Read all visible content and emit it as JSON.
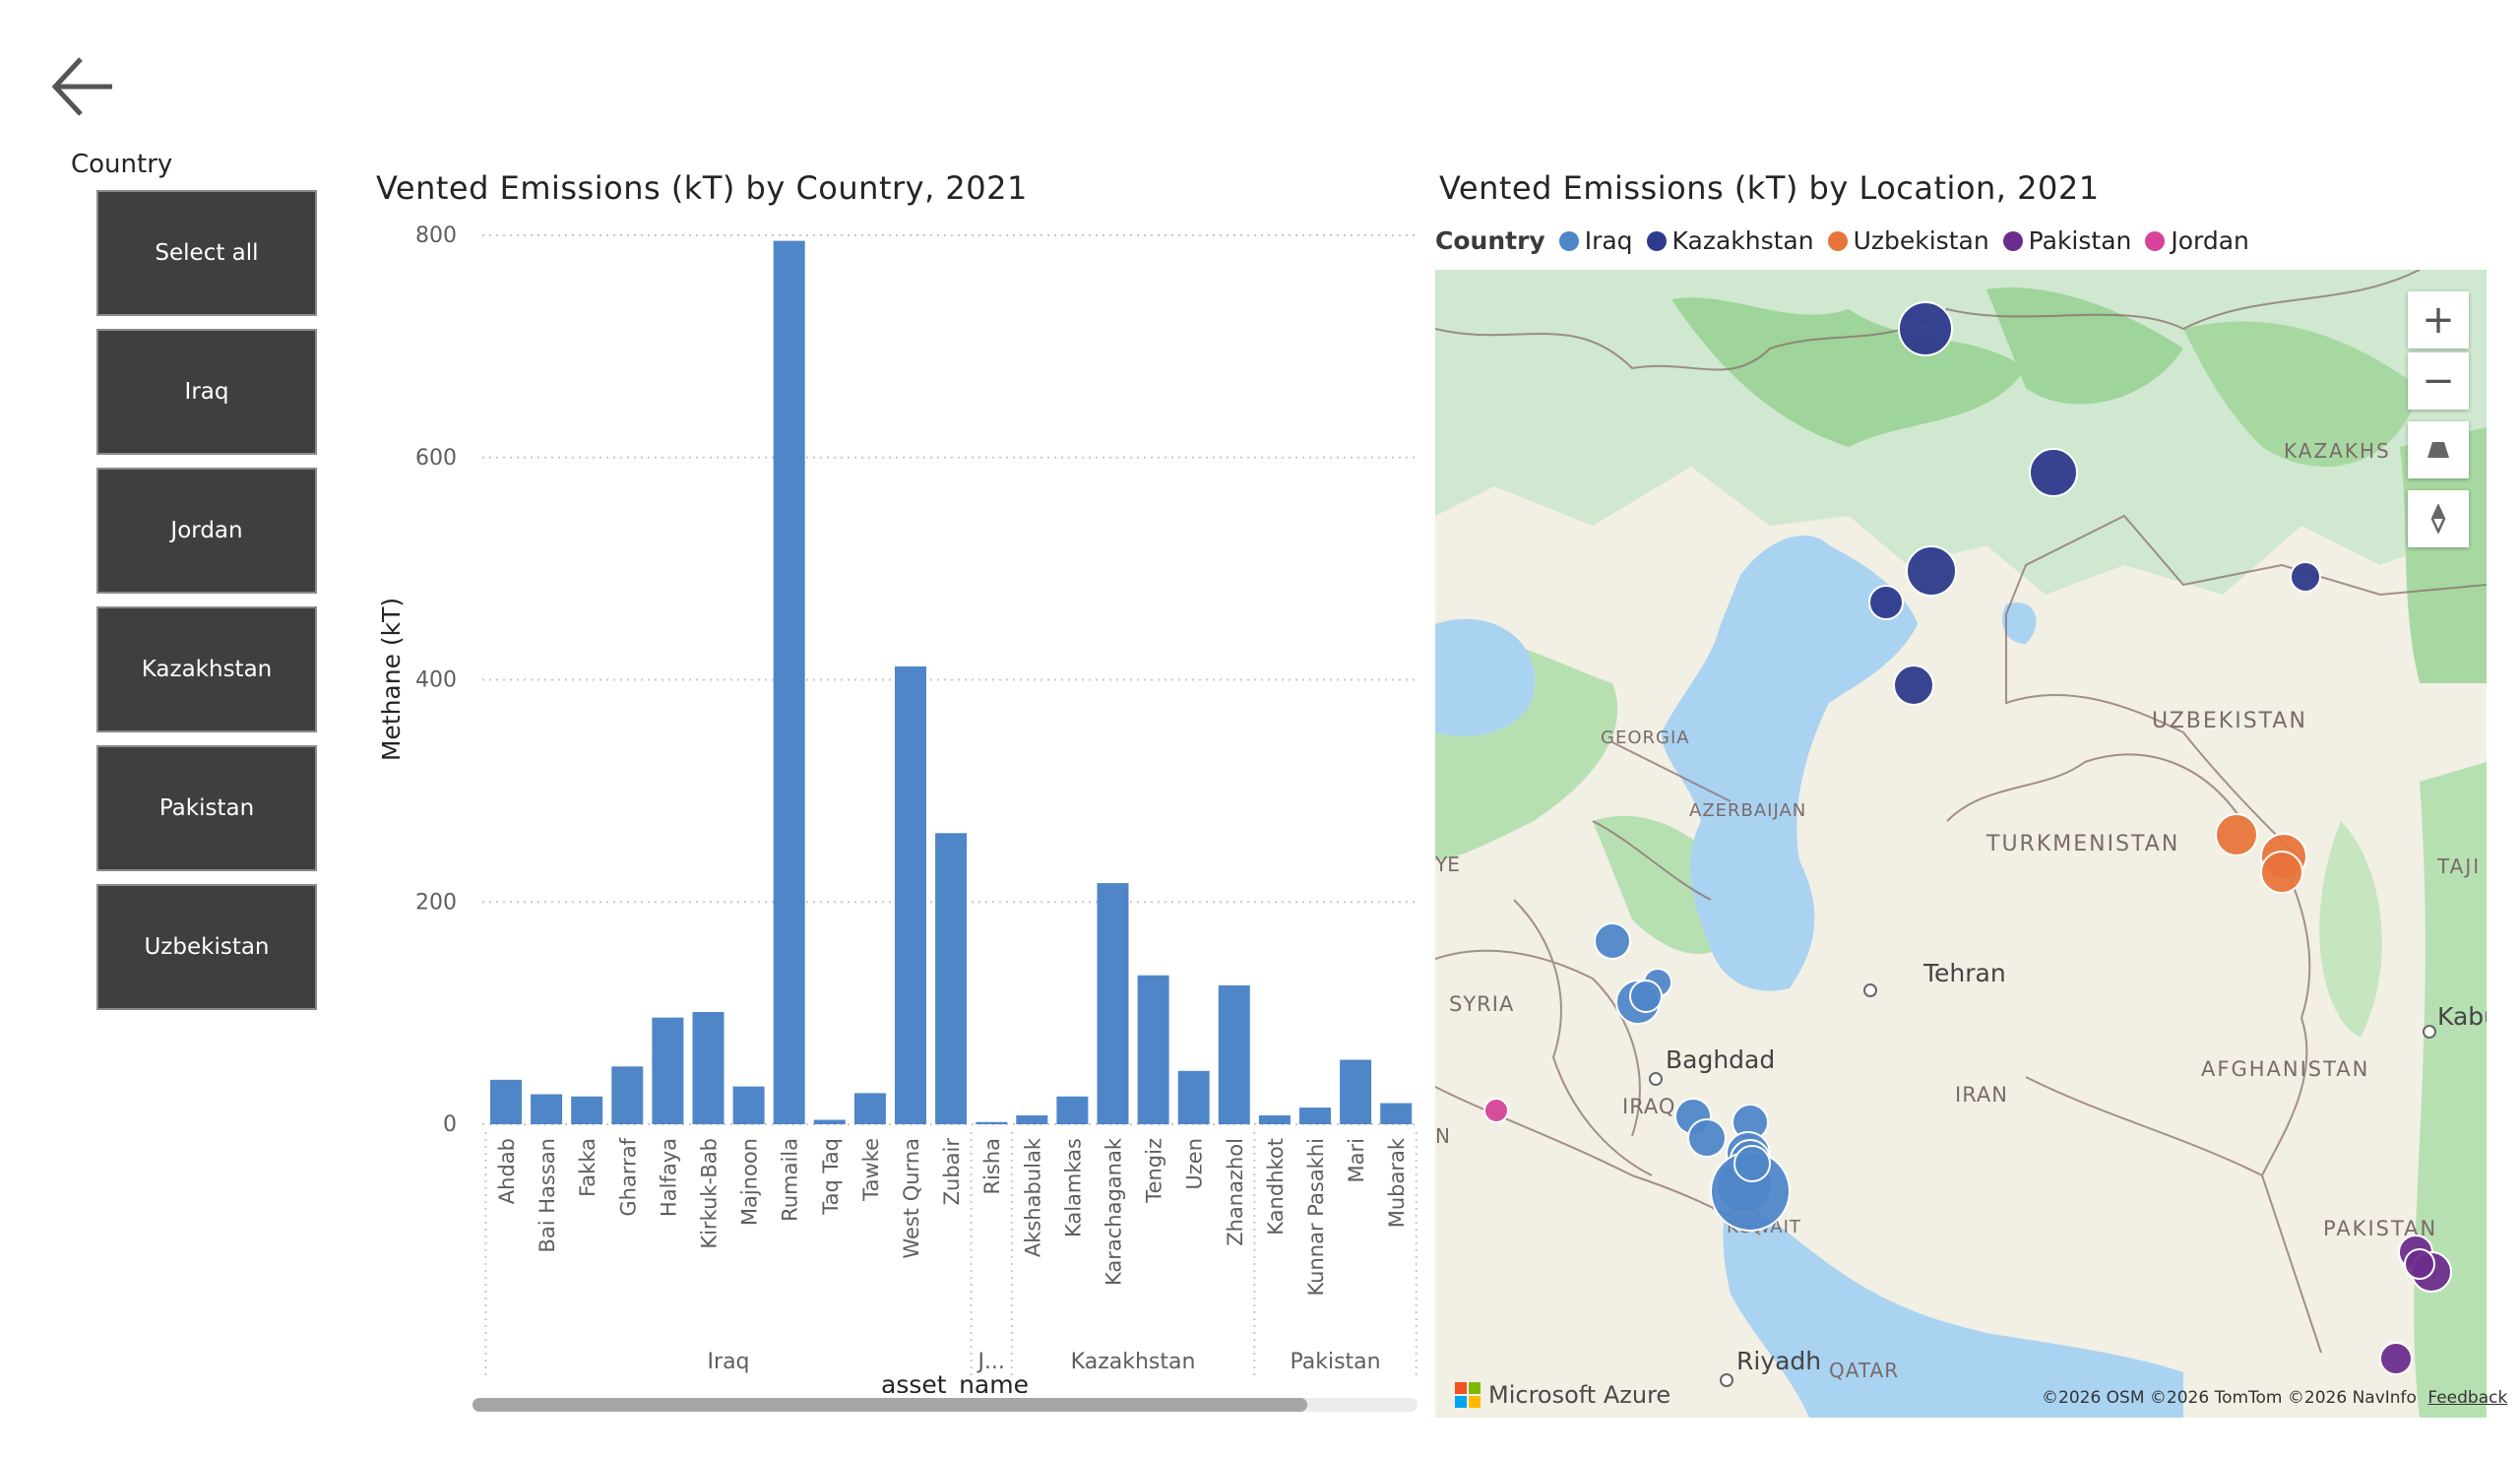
{
  "slicer": {
    "title": "Country",
    "options": [
      "Select all",
      "Iraq",
      "Jordan",
      "Kazakhstan",
      "Pakistan",
      "Uzbekistan"
    ]
  },
  "bar_visual": {
    "title": "Vented Emissions (kT) by Country, 2021"
  },
  "map_visual": {
    "title": "Vented Emissions (kT) by Location, 2021",
    "legend_title": "Country",
    "legend": [
      {
        "name": "Iraq",
        "color": "#4f86c8"
      },
      {
        "name": "Kazakhstan",
        "color": "#2e3a8c"
      },
      {
        "name": "Uzbekistan",
        "color": "#e8743b"
      },
      {
        "name": "Pakistan",
        "color": "#6b2d8c"
      },
      {
        "name": "Jordan",
        "color": "#d6439a"
      }
    ],
    "labels": {
      "kazakhs": "KAZAKHS",
      "uzbekistan": "UZBEKISTAN",
      "georgia": "GEORGIA",
      "azerbaijan": "AZERBAIJAN",
      "turkmenistan": "TURKMENISTAN",
      "taji": "TAJI",
      "ye": "YE",
      "syria": "SYRIA",
      "tehran": "Tehran",
      "kabul": "Kabul",
      "baghdad": "Baghdad",
      "iraq": "IRAQ",
      "iran": "IRAN",
      "afghanistan": "AFGHANISTAN",
      "n": "N",
      "pakistan": "PAKISTAN",
      "kuwait": "KUWAIT",
      "riyadh": "Riyadh",
      "qatar": "QATAR"
    },
    "attribution": "Microsoft Azure",
    "copyright": "©2026 OSM  ©2026 TomTom  ©2026 NavInfo",
    "feedback": "Feedback",
    "zoom_in": "+",
    "zoom_out": "−"
  },
  "chart_data": {
    "type": "bar",
    "title": "Vented Emissions (kT) by Country, 2021",
    "xlabel": "asset_name",
    "ylabel": "Methane (kT)",
    "ylim": [
      0,
      800
    ],
    "yticks": [
      0,
      200,
      400,
      600,
      800
    ],
    "color": "#4f86c8",
    "groups": [
      {
        "name": "Iraq",
        "label": "Iraq",
        "categories": [
          "Ahdab",
          "Bai Hassan",
          "Fakka",
          "Gharraf",
          "Halfaya",
          "Kirkuk-Bab",
          "Majnoon",
          "Rumaila",
          "Taq Taq",
          "Tawke",
          "West Qurna",
          "Zubair"
        ],
        "values": [
          40,
          27,
          25,
          52,
          96,
          101,
          34,
          795,
          4,
          28,
          412,
          262
        ]
      },
      {
        "name": "Jordan",
        "label": "J...",
        "categories": [
          "Risha"
        ],
        "values": [
          2
        ]
      },
      {
        "name": "Kazakhstan",
        "label": "Kazakhstan",
        "categories": [
          "Akshabulak",
          "Kalamkas",
          "Karachaganak",
          "Tengiz",
          "Uzen",
          "Zhanazhol"
        ],
        "values": [
          8,
          25,
          217,
          134,
          48,
          125
        ]
      },
      {
        "name": "Pakistan",
        "label": "Pakistan",
        "categories": [
          "Kandhkot",
          "Kunnar Pasakhi",
          "Mari",
          "Mubarak"
        ],
        "values": [
          8,
          15,
          58,
          19
        ]
      }
    ]
  }
}
